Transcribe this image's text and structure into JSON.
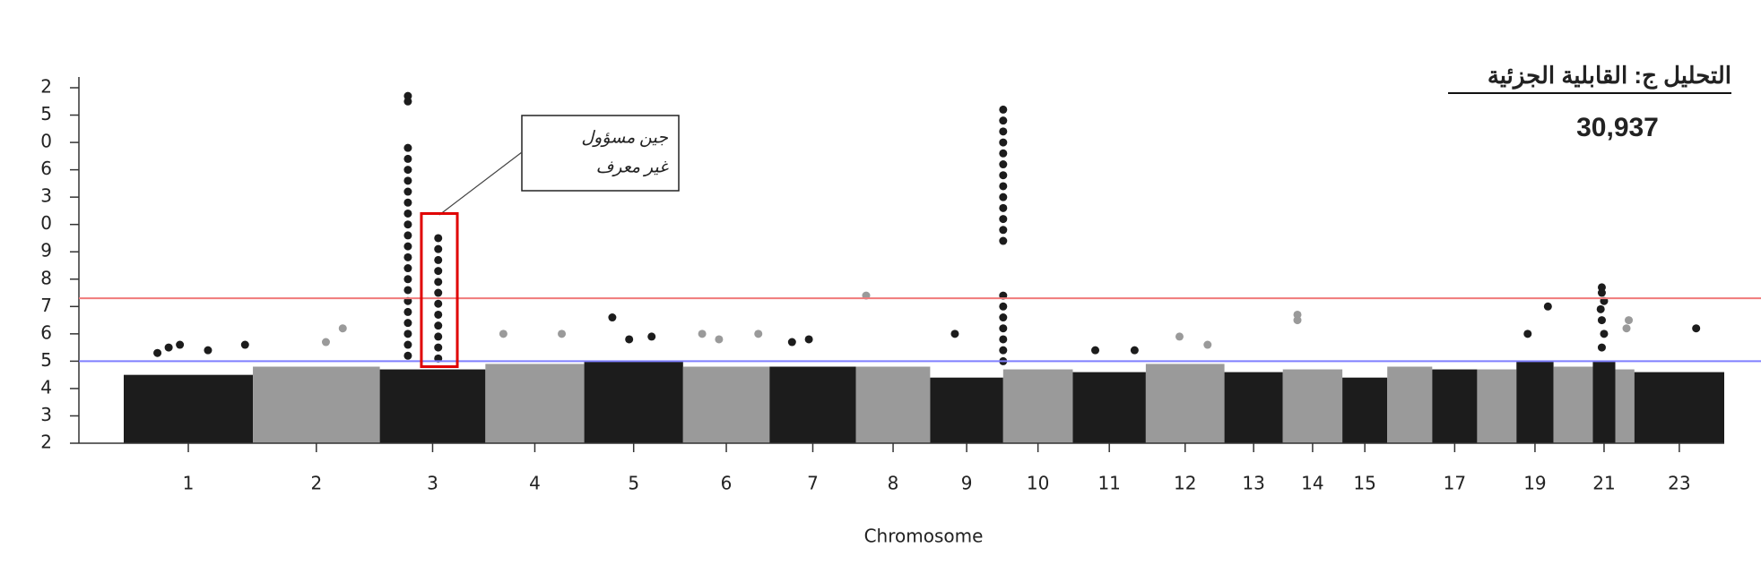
{
  "chart_data": {
    "type": "manhattan",
    "title": "التحليل ج: القابلية الجزئية",
    "subtitle": "30,937",
    "x_label": "Chromosome",
    "categories": [
      "1",
      "2",
      "3",
      "4",
      "5",
      "6",
      "7",
      "8",
      "9",
      "10",
      "11",
      "12",
      "13",
      "14",
      "15",
      null,
      "17",
      null,
      "19",
      null,
      "21",
      null,
      "23"
    ],
    "chromosome_edges": [
      0,
      115,
      228,
      322,
      410,
      498,
      575,
      652,
      718,
      783,
      845,
      910,
      980,
      1032,
      1085,
      1125,
      1165,
      1205,
      1240,
      1273,
      1308,
      1328,
      1345,
      1425
    ],
    "xlim": [
      0,
      1425
    ],
    "bulk_top": [
      4.5,
      4.8,
      4.7,
      4.9,
      5.0,
      4.8,
      4.8,
      4.8,
      4.4,
      4.7,
      4.6,
      4.9,
      4.6,
      4.7,
      4.4,
      4.8,
      4.7,
      4.7,
      5.0,
      4.8,
      5.0,
      4.7,
      4.6
    ],
    "colors": [
      "#1c1c1c",
      "#9a9a9a"
    ],
    "points": [
      {
        "x": 253,
        "y": 14.7
      },
      {
        "x": 253,
        "y": 14.5
      },
      {
        "x": 253,
        "y": 12.8
      },
      {
        "x": 253,
        "y": 12.4
      },
      {
        "x": 253,
        "y": 12.0
      },
      {
        "x": 253,
        "y": 11.6
      },
      {
        "x": 253,
        "y": 11.2
      },
      {
        "x": 253,
        "y": 10.8
      },
      {
        "x": 253,
        "y": 10.4
      },
      {
        "x": 253,
        "y": 10.0
      },
      {
        "x": 253,
        "y": 9.6
      },
      {
        "x": 253,
        "y": 9.2
      },
      {
        "x": 253,
        "y": 8.8
      },
      {
        "x": 253,
        "y": 8.4
      },
      {
        "x": 253,
        "y": 8.0
      },
      {
        "x": 253,
        "y": 7.6
      },
      {
        "x": 253,
        "y": 7.2
      },
      {
        "x": 253,
        "y": 6.8
      },
      {
        "x": 253,
        "y": 6.4
      },
      {
        "x": 253,
        "y": 6.0
      },
      {
        "x": 253,
        "y": 5.6
      },
      {
        "x": 253,
        "y": 5.2
      },
      {
        "x": 280,
        "y": 9.5
      },
      {
        "x": 280,
        "y": 9.1
      },
      {
        "x": 280,
        "y": 8.7
      },
      {
        "x": 280,
        "y": 8.3
      },
      {
        "x": 280,
        "y": 7.9
      },
      {
        "x": 280,
        "y": 7.5
      },
      {
        "x": 280,
        "y": 7.1
      },
      {
        "x": 280,
        "y": 6.7
      },
      {
        "x": 280,
        "y": 6.3
      },
      {
        "x": 280,
        "y": 5.9
      },
      {
        "x": 280,
        "y": 5.5
      },
      {
        "x": 280,
        "y": 5.1
      },
      {
        "x": 783,
        "y": 14.2
      },
      {
        "x": 783,
        "y": 13.8
      },
      {
        "x": 783,
        "y": 13.4
      },
      {
        "x": 783,
        "y": 13.0
      },
      {
        "x": 783,
        "y": 12.6
      },
      {
        "x": 783,
        "y": 12.2
      },
      {
        "x": 783,
        "y": 11.8
      },
      {
        "x": 783,
        "y": 11.4
      },
      {
        "x": 783,
        "y": 11.0
      },
      {
        "x": 783,
        "y": 10.6
      },
      {
        "x": 783,
        "y": 10.2
      },
      {
        "x": 783,
        "y": 9.8
      },
      {
        "x": 783,
        "y": 9.4
      },
      {
        "x": 783,
        "y": 7.4
      },
      {
        "x": 783,
        "y": 7.0
      },
      {
        "x": 783,
        "y": 6.6
      },
      {
        "x": 783,
        "y": 6.2
      },
      {
        "x": 783,
        "y": 5.8
      },
      {
        "x": 783,
        "y": 5.4
      },
      {
        "x": 783,
        "y": 5.0
      },
      {
        "x": 30,
        "y": 5.3
      },
      {
        "x": 40,
        "y": 5.5
      },
      {
        "x": 50,
        "y": 5.6
      },
      {
        "x": 75,
        "y": 5.4
      },
      {
        "x": 108,
        "y": 5.6
      },
      {
        "x": 195,
        "y": 6.2
      },
      {
        "x": 180,
        "y": 5.7
      },
      {
        "x": 338,
        "y": 6.0
      },
      {
        "x": 390,
        "y": 6.0
      },
      {
        "x": 435,
        "y": 6.6
      },
      {
        "x": 450,
        "y": 5.8
      },
      {
        "x": 470,
        "y": 5.9
      },
      {
        "x": 515,
        "y": 6.0
      },
      {
        "x": 530,
        "y": 5.8
      },
      {
        "x": 565,
        "y": 6.0
      },
      {
        "x": 610,
        "y": 5.8
      },
      {
        "x": 595,
        "y": 5.7
      },
      {
        "x": 661,
        "y": 7.4
      },
      {
        "x": 740,
        "y": 6.0
      },
      {
        "x": 865,
        "y": 5.4
      },
      {
        "x": 900,
        "y": 5.4
      },
      {
        "x": 940,
        "y": 5.9
      },
      {
        "x": 965,
        "y": 5.6
      },
      {
        "x": 1045,
        "y": 6.7
      },
      {
        "x": 1045,
        "y": 6.5
      },
      {
        "x": 1250,
        "y": 6.0
      },
      {
        "x": 1268,
        "y": 7.0
      },
      {
        "x": 1316,
        "y": 7.7
      },
      {
        "x": 1316,
        "y": 7.5
      },
      {
        "x": 1318,
        "y": 7.2
      },
      {
        "x": 1315,
        "y": 6.9
      },
      {
        "x": 1316,
        "y": 6.5
      },
      {
        "x": 1318,
        "y": 6.0
      },
      {
        "x": 1316,
        "y": 5.5
      },
      {
        "x": 1340,
        "y": 6.5
      },
      {
        "x": 1338,
        "y": 6.2
      },
      {
        "x": 1400,
        "y": 6.2
      }
    ],
    "thresholds": [
      {
        "value": 7.3,
        "color": "#f07a7a"
      },
      {
        "value": 5,
        "color": "#7f7fff"
      }
    ],
    "highlight": {
      "x": [
        265,
        297
      ],
      "y": [
        4.8,
        10.4
      ],
      "color": "#e00000"
    },
    "annotation": [
      "جين مسؤول",
      "غير معرف"
    ],
    "ylim": [
      2,
      15
    ],
    "yticks": [
      2,
      3,
      4,
      5,
      6,
      7,
      8,
      9,
      {
        "value": 10,
        "label": "0"
      },
      {
        "value": 11,
        "label": "3"
      },
      {
        "value": 12,
        "label": "6"
      },
      {
        "value": 13,
        "label": "0"
      },
      {
        "value": 14,
        "label": "5"
      },
      {
        "value": 15,
        "label": "2"
      }
    ]
  }
}
